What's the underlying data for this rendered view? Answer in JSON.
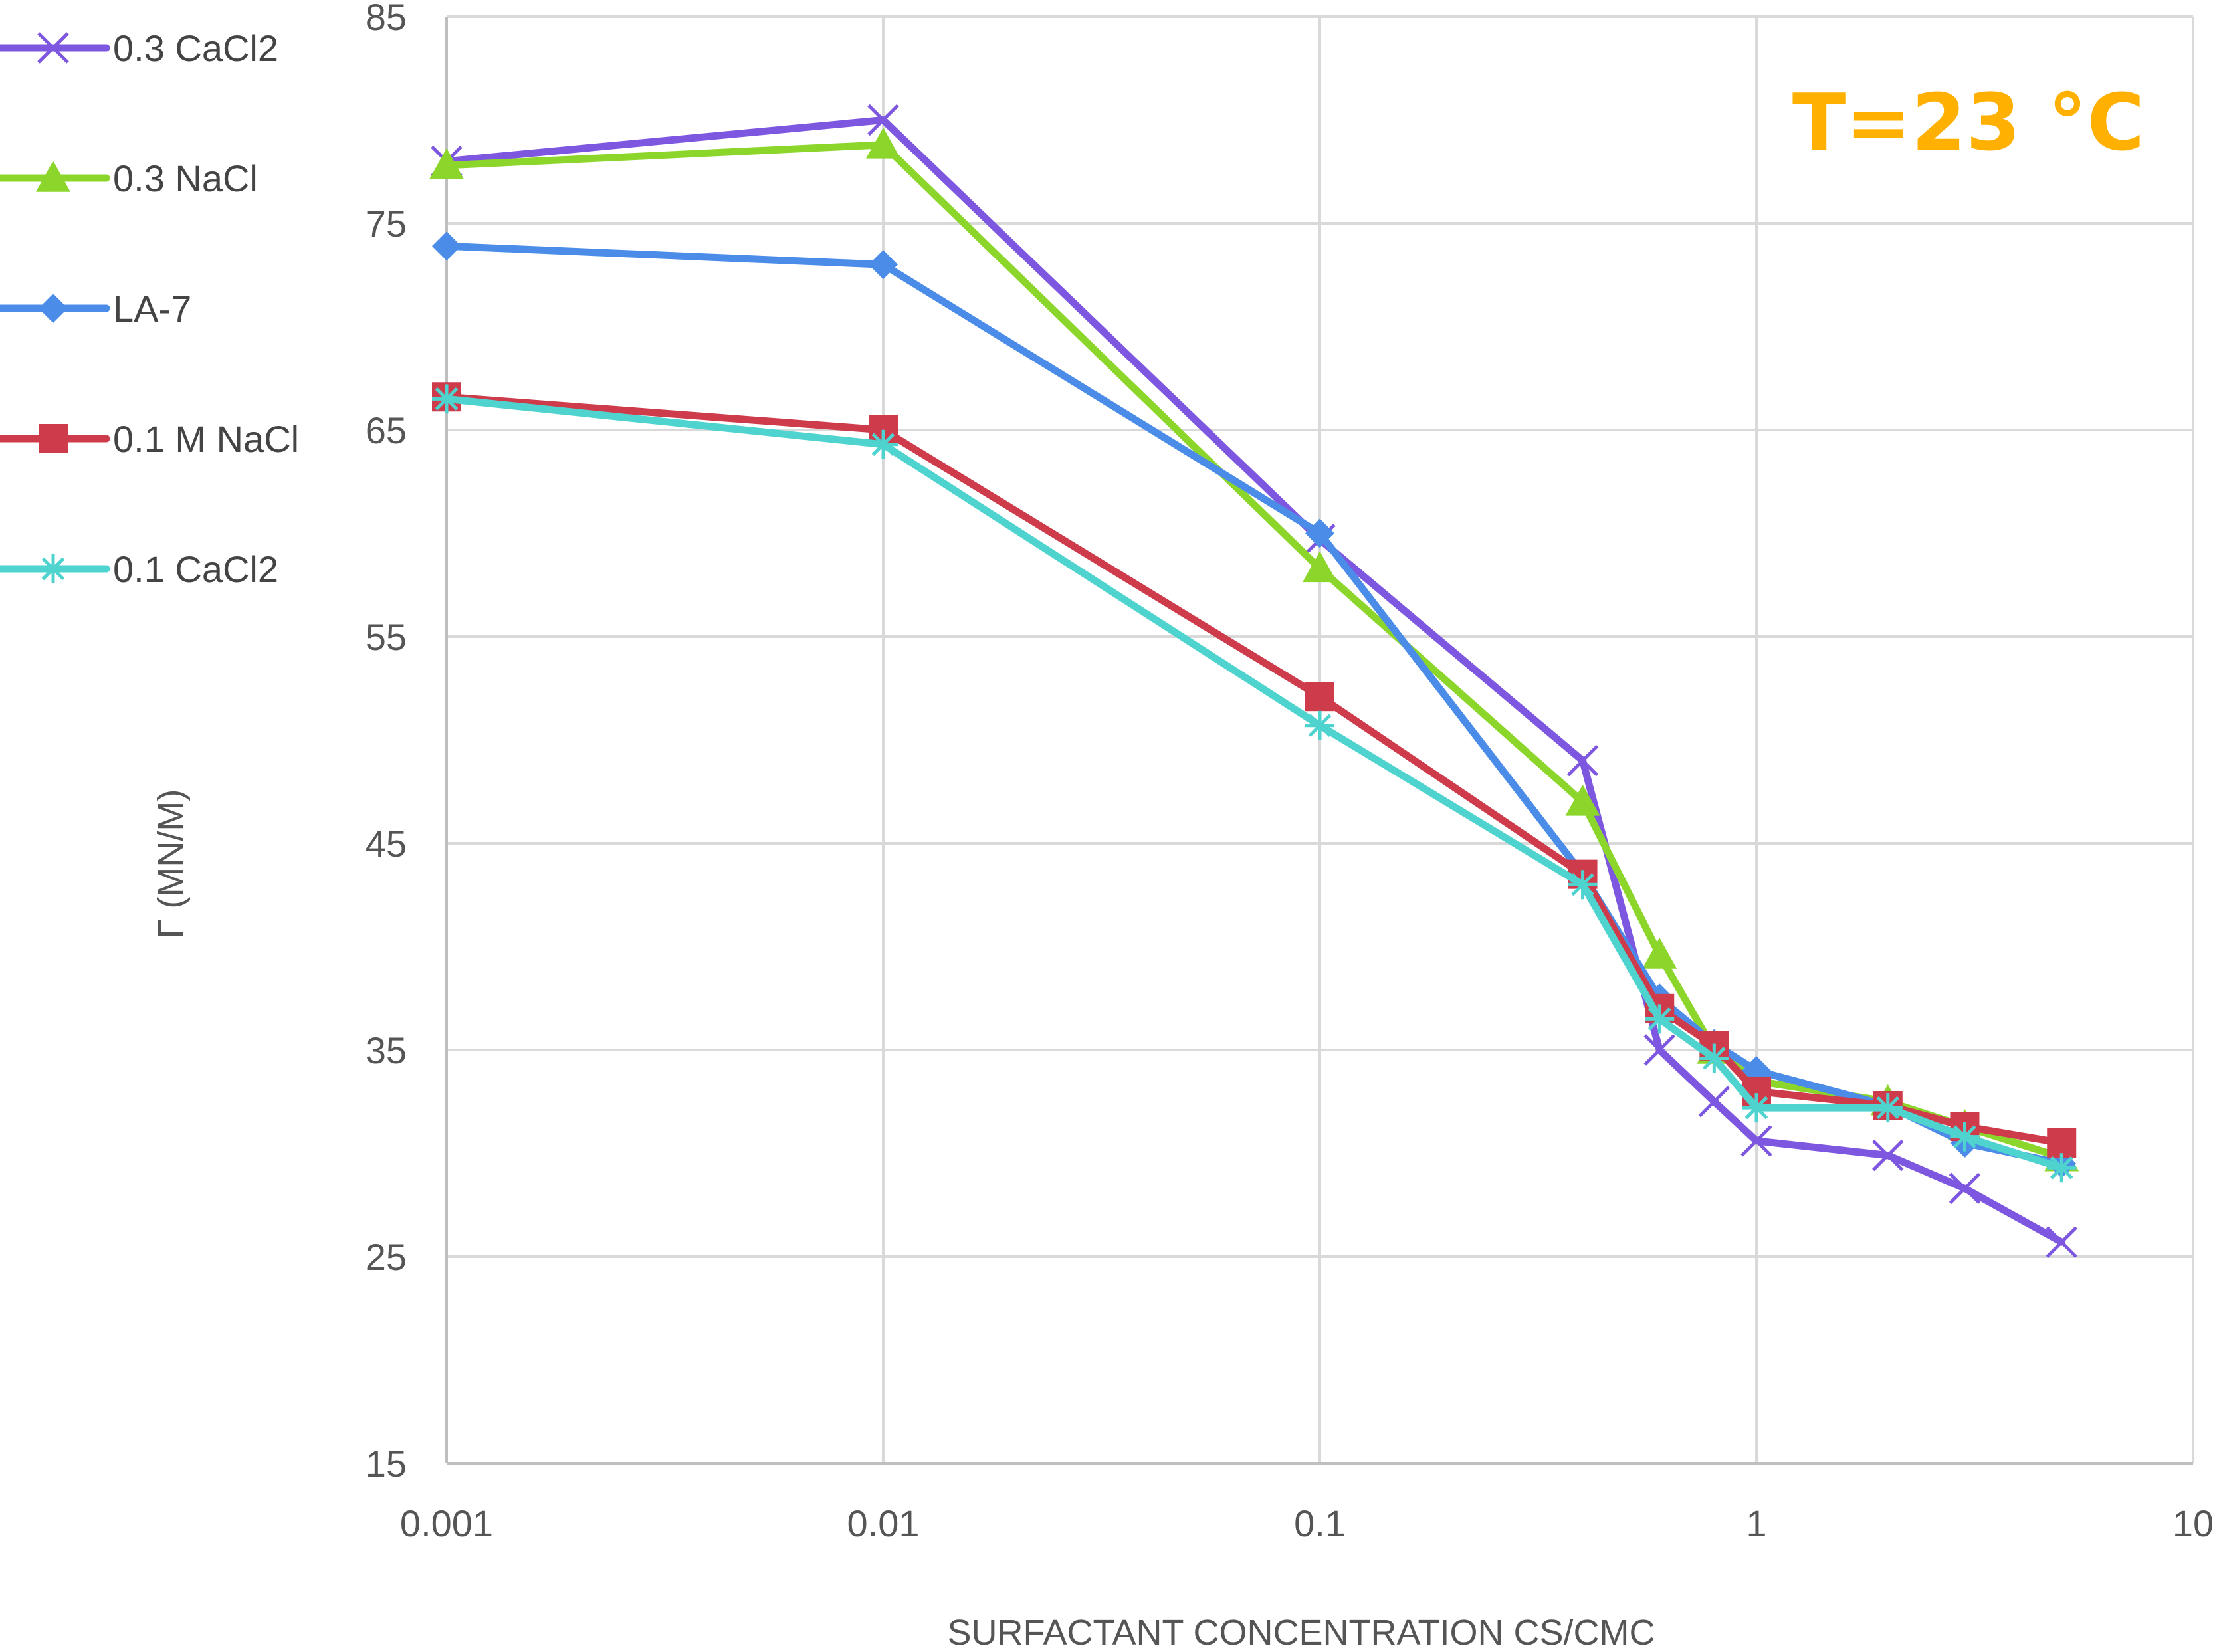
{
  "chart_data": {
    "type": "line",
    "x_scale": "log",
    "xlim": [
      0.001,
      10
    ],
    "ylim": [
      15,
      85
    ],
    "xticks": [
      "0.001",
      "0.01",
      "0.1",
      "1",
      "10"
    ],
    "yticks": [
      "15",
      "25",
      "35",
      "45",
      "55",
      "65",
      "75",
      "85"
    ],
    "xlabel": "SURFACTANT CONCENTRATION CS/CMC",
    "ylabel": "Γ (MN/M)",
    "annotation": "T=23 °C",
    "annotation_color": "#FFB000",
    "grid": true,
    "legend_position": "left",
    "series": [
      {
        "name": "0.3 CaCl2",
        "color": "#7E57E0",
        "marker": "x",
        "points": [
          [
            0.001,
            78
          ],
          [
            0.01,
            80
          ],
          [
            0.1,
            59.7
          ],
          [
            0.4,
            49
          ],
          [
            0.6,
            35
          ],
          [
            0.8,
            32.5
          ],
          [
            1,
            30.6
          ],
          [
            2,
            29.9
          ],
          [
            3,
            28.3
          ],
          [
            5,
            25.7
          ]
        ]
      },
      {
        "name": "0.3 NaCl",
        "color": "#8CD62C",
        "marker": "triangle",
        "points": [
          [
            0.001,
            77.8
          ],
          [
            0.01,
            78.8
          ],
          [
            0.1,
            58.3
          ],
          [
            0.4,
            47
          ],
          [
            0.6,
            39.6
          ],
          [
            0.8,
            35
          ],
          [
            1,
            33.5
          ],
          [
            2,
            32.5
          ],
          [
            3,
            31.3
          ],
          [
            5,
            29.8
          ]
        ]
      },
      {
        "name": "LA-7",
        "color": "#4A8CE8",
        "marker": "diamond",
        "points": [
          [
            0.001,
            73.9
          ],
          [
            0.01,
            73
          ],
          [
            0.1,
            60
          ],
          [
            0.4,
            43.5
          ],
          [
            0.6,
            37.5
          ],
          [
            0.8,
            35.3
          ],
          [
            1,
            34
          ],
          [
            2,
            32.3
          ],
          [
            3,
            30.5
          ],
          [
            5,
            29.5
          ]
        ]
      },
      {
        "name": "0.1 M NaCl",
        "color": "#CE3B4B",
        "marker": "square",
        "points": [
          [
            0.001,
            66.6
          ],
          [
            0.01,
            65
          ],
          [
            0.1,
            52.1
          ],
          [
            0.4,
            43.5
          ],
          [
            0.6,
            37
          ],
          [
            0.8,
            35.2
          ],
          [
            1,
            33
          ],
          [
            2,
            32.3
          ],
          [
            3,
            31.3
          ],
          [
            5,
            30.5
          ]
        ]
      },
      {
        "name": "0.1 CaCl2",
        "color": "#4FD3CF",
        "marker": "asterisk",
        "points": [
          [
            0.001,
            66.5
          ],
          [
            0.01,
            64.3
          ],
          [
            0.1,
            50.7
          ],
          [
            0.4,
            43
          ],
          [
            0.6,
            36.5
          ],
          [
            0.8,
            34.6
          ],
          [
            1,
            32.2
          ],
          [
            2,
            32.2
          ],
          [
            3,
            30.8
          ],
          [
            5,
            29.3
          ]
        ]
      }
    ]
  }
}
